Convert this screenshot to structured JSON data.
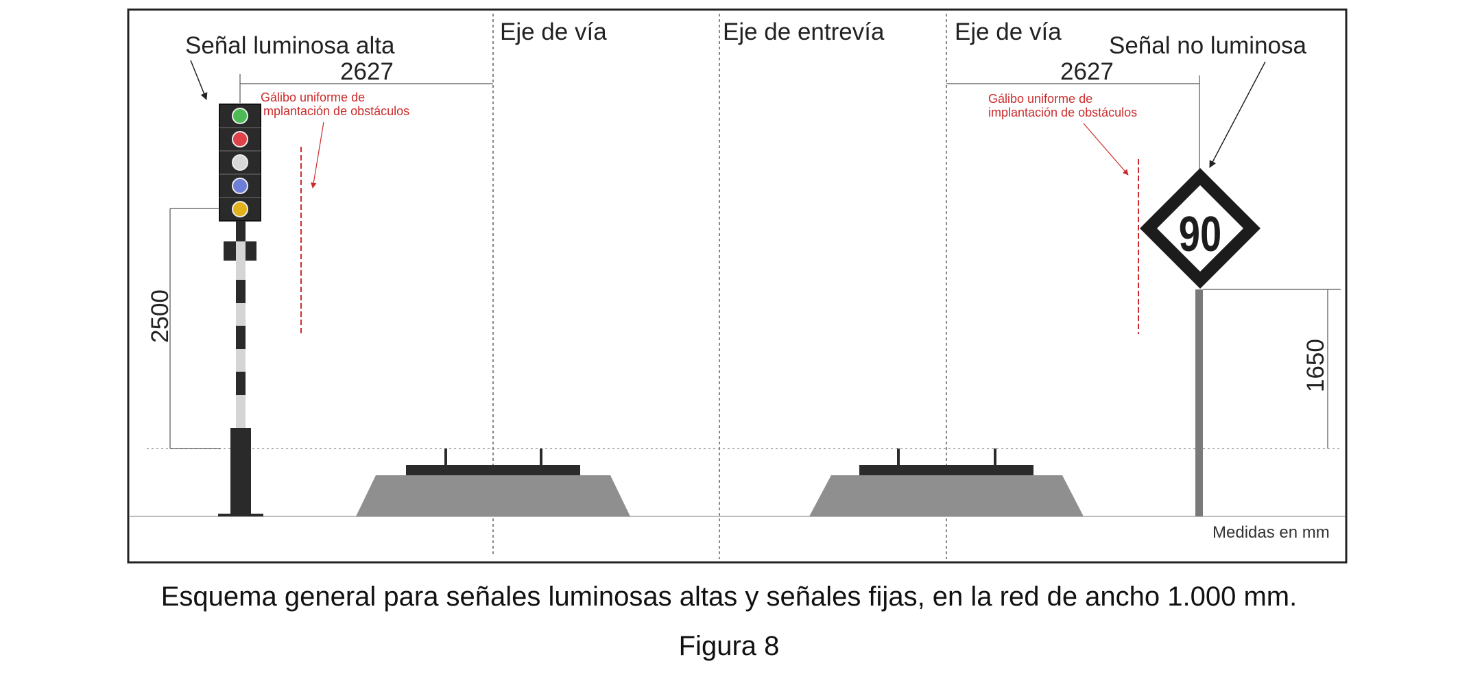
{
  "labels": {
    "light_signal": "Señal luminosa alta",
    "non_light_signal": "Señal no luminosa",
    "track_axis_left": "Eje de vía",
    "between_tracks_axis": "Eje de entrevía",
    "track_axis_right": "Eje de vía",
    "gauge_left_line1": "Gálibo uniforme de",
    "gauge_left_line2": "mplantación de obstáculos",
    "gauge_right_line1": "Gálibo uniforme de",
    "gauge_right_line2": "implantación de obstáculos",
    "units_note": "Medidas en mm",
    "speed_sign_value": "90"
  },
  "dimensions": {
    "left_horizontal": "2627",
    "right_horizontal": "2627",
    "left_vertical": "2500",
    "right_vertical": "1650"
  },
  "caption": {
    "main": "Esquema general para señales luminosas altas y señales fijas, en la red de ancho 1.000 mm.",
    "figure": "Figura 8"
  },
  "colors": {
    "frame": "#222222",
    "ballast": "#8f8f8f",
    "sleeper": "#2b2b2b",
    "gauge_red": "#cc2b2b",
    "lamp_green": "#4dbb55",
    "lamp_red": "#e0424a",
    "lamp_white": "#d8d8d8",
    "lamp_blue": "#6d7fd6",
    "lamp_yellow": "#e2b21c"
  }
}
